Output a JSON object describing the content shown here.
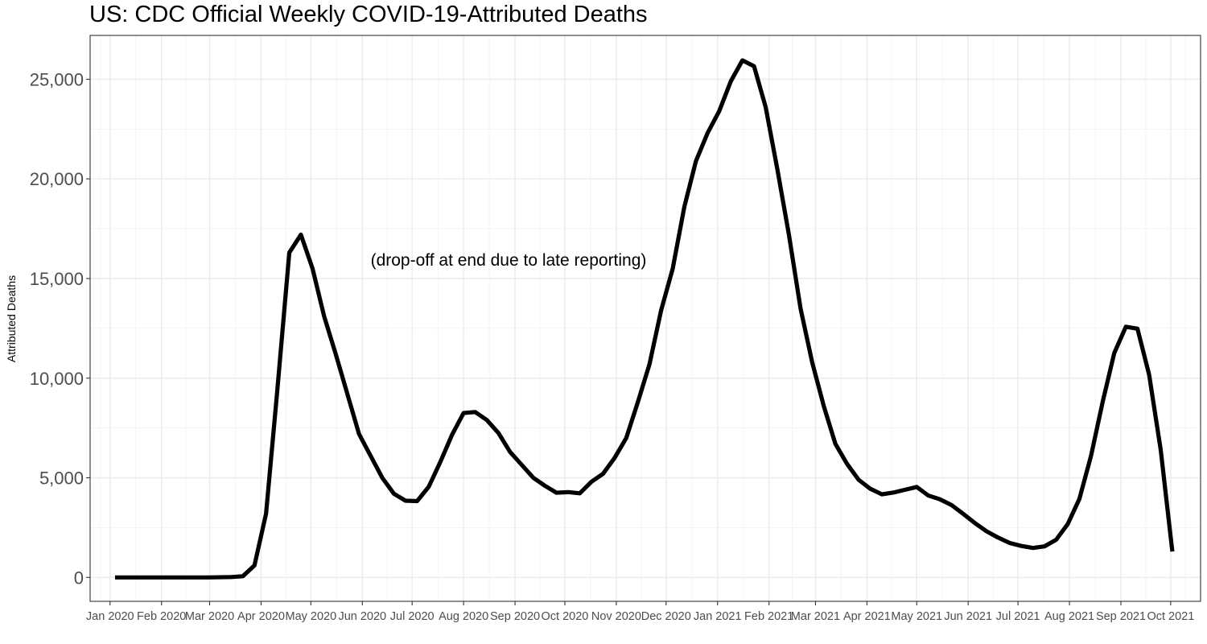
{
  "chart_data": {
    "type": "line",
    "title": "US: CDC Official Weekly COVID-19-Attributed Deaths",
    "xlabel": "",
    "ylabel": "Attributed Deaths",
    "annotation": "(drop-off at end due to late reporting)",
    "ylim": [
      -1200,
      27200
    ],
    "xlim": [
      "2019-12-20",
      "2021-10-19"
    ],
    "y_ticks": [
      0,
      5000,
      10000,
      15000,
      20000,
      25000
    ],
    "y_tick_labels": [
      "0",
      "5,000",
      "10,000",
      "15,000",
      "20,000",
      "25,000"
    ],
    "x_ticks": [
      "2020-01-01",
      "2020-02-01",
      "2020-03-01",
      "2020-04-01",
      "2020-05-01",
      "2020-06-01",
      "2020-07-01",
      "2020-08-01",
      "2020-09-01",
      "2020-10-01",
      "2020-11-01",
      "2020-12-01",
      "2021-01-01",
      "2021-02-01",
      "2021-03-01",
      "2021-04-01",
      "2021-05-01",
      "2021-06-01",
      "2021-07-01",
      "2021-08-01",
      "2021-09-01",
      "2021-10-01"
    ],
    "x_tick_labels": [
      "Jan 2020",
      "Feb 2020",
      "Mar 2020",
      "Apr 2020",
      "May 2020",
      "Jun 2020",
      "Jul 2020",
      "Aug 2020",
      "Sep 2020",
      "Oct 2020",
      "Nov 2020",
      "Dec 2020",
      "Jan 2021",
      "Feb 2021",
      "Mar 2021",
      "Apr 2021",
      "May 2021",
      "Jun 2021",
      "Jul 2021",
      "Aug 2021",
      "Sep 2021",
      "Oct 2021"
    ],
    "grid": true,
    "series": [
      {
        "color": "#000000",
        "x": [
          "2020-01-04",
          "2020-01-11",
          "2020-01-18",
          "2020-01-25",
          "2020-02-01",
          "2020-02-08",
          "2020-02-15",
          "2020-02-22",
          "2020-02-29",
          "2020-03-07",
          "2020-03-14",
          "2020-03-21",
          "2020-03-28",
          "2020-04-04",
          "2020-04-11",
          "2020-04-18",
          "2020-04-25",
          "2020-05-02",
          "2020-05-09",
          "2020-05-16",
          "2020-05-23",
          "2020-05-30",
          "2020-06-06",
          "2020-06-13",
          "2020-06-20",
          "2020-06-27",
          "2020-07-04",
          "2020-07-11",
          "2020-07-18",
          "2020-07-25",
          "2020-08-01",
          "2020-08-08",
          "2020-08-15",
          "2020-08-22",
          "2020-08-29",
          "2020-09-05",
          "2020-09-12",
          "2020-09-19",
          "2020-09-26",
          "2020-10-03",
          "2020-10-10",
          "2020-10-17",
          "2020-10-24",
          "2020-10-31",
          "2020-11-07",
          "2020-11-14",
          "2020-11-21",
          "2020-11-28",
          "2020-12-05",
          "2020-12-12",
          "2020-12-19",
          "2020-12-26",
          "2021-01-02",
          "2021-01-09",
          "2021-01-16",
          "2021-01-23",
          "2021-01-30",
          "2021-02-06",
          "2021-02-13",
          "2021-02-20",
          "2021-02-27",
          "2021-03-06",
          "2021-03-13",
          "2021-03-20",
          "2021-03-27",
          "2021-04-03",
          "2021-04-10",
          "2021-04-17",
          "2021-04-24",
          "2021-05-01",
          "2021-05-08",
          "2021-05-15",
          "2021-05-22",
          "2021-05-29",
          "2021-06-05",
          "2021-06-12",
          "2021-06-19",
          "2021-06-26",
          "2021-07-03",
          "2021-07-10",
          "2021-07-17",
          "2021-07-24",
          "2021-07-31",
          "2021-08-07",
          "2021-08-14",
          "2021-08-21",
          "2021-08-28",
          "2021-09-04",
          "2021-09-11",
          "2021-09-18",
          "2021-09-25",
          "2021-10-02"
        ],
        "y": [
          0,
          0,
          0,
          0,
          0,
          0,
          0,
          0,
          0,
          10,
          20,
          60,
          600,
          3200,
          9600,
          16300,
          17200,
          15500,
          13100,
          11200,
          9200,
          7200,
          6100,
          5000,
          4200,
          3850,
          3830,
          4550,
          5800,
          7150,
          8250,
          8300,
          7900,
          7250,
          6300,
          5650,
          5000,
          4600,
          4250,
          4280,
          4220,
          4800,
          5200,
          6000,
          7000,
          8800,
          10700,
          13400,
          15500,
          18600,
          20900,
          22300,
          23400,
          24900,
          25950,
          25650,
          23600,
          20500,
          17200,
          13500,
          10800,
          8600,
          6700,
          5700,
          4900,
          4450,
          4170,
          4260,
          4400,
          4540,
          4110,
          3920,
          3630,
          3190,
          2730,
          2320,
          2000,
          1730,
          1580,
          1480,
          1560,
          1890,
          2680,
          3940,
          6100,
          8800,
          11260,
          12580,
          12480,
          10180,
          6400,
          1300
        ]
      }
    ]
  }
}
